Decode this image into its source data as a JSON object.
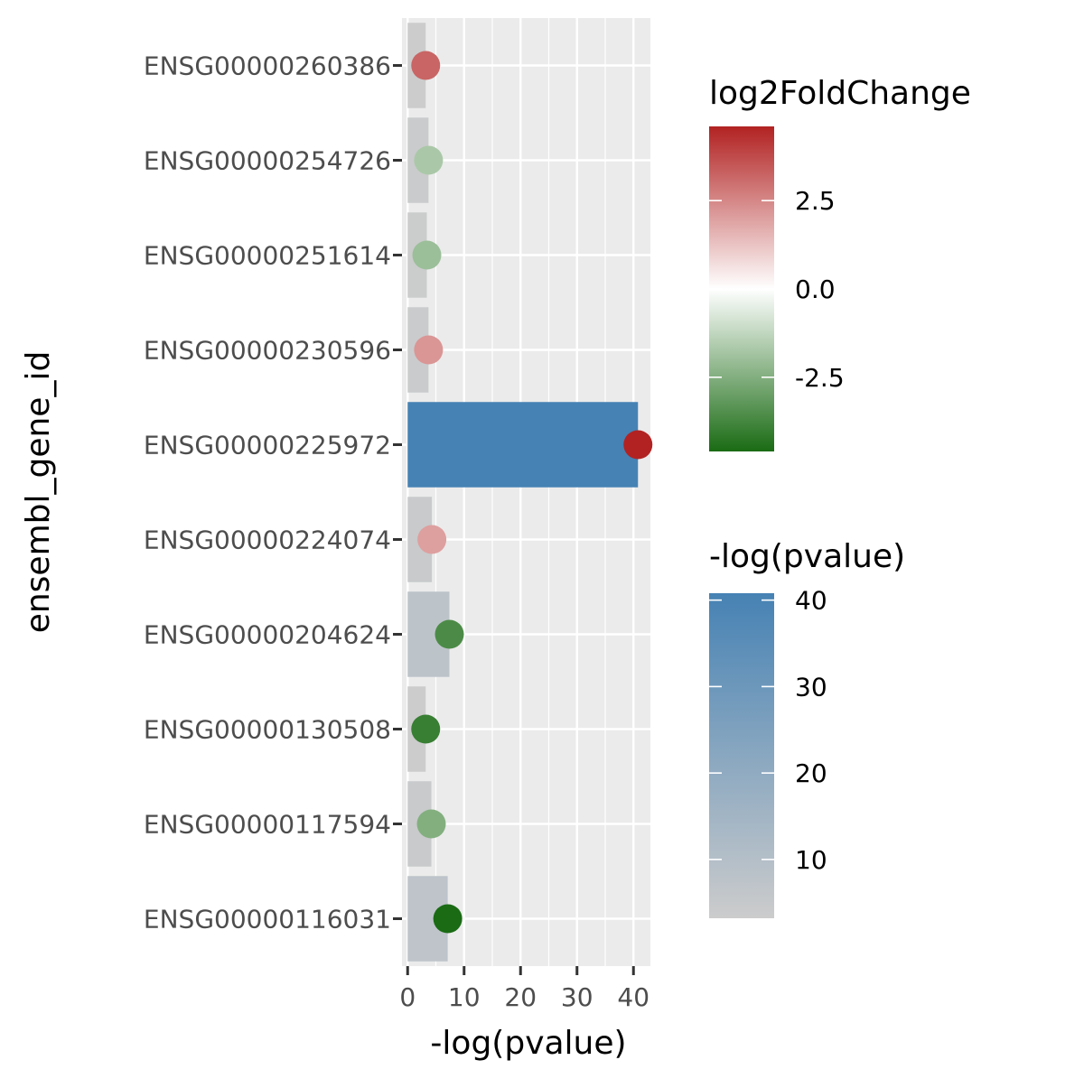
{
  "chart_data": {
    "type": "bar",
    "xlabel": "-log(pvalue)",
    "ylabel": "ensembl_gene_id",
    "xlim": [
      -1,
      43
    ],
    "x_ticks": [
      0,
      10,
      20,
      30,
      40
    ],
    "grid": true,
    "categories": [
      "ENSG00000260386",
      "ENSG00000254726",
      "ENSG00000251614",
      "ENSG00000230596",
      "ENSG00000225972",
      "ENSG00000224074",
      "ENSG00000204624",
      "ENSG00000130508",
      "ENSG00000117594",
      "ENSG00000116031"
    ],
    "neg_log_pvalue": [
      3.2,
      3.7,
      3.4,
      3.7,
      40.8,
      4.3,
      7.4,
      3.2,
      4.2,
      7.1
    ],
    "log2FoldChange": [
      3.2,
      -1.7,
      -2.0,
      2.2,
      4.6,
      2.0,
      -3.6,
      -4.0,
      -2.5,
      -4.6
    ],
    "legends": [
      {
        "title": "log2FoldChange",
        "type": "colorbar",
        "range": [
          -4.6,
          4.6
        ],
        "breaks": [
          2.5,
          0.0,
          -2.5
        ],
        "break_labels": [
          "2.5",
          "0.0",
          "-2.5"
        ],
        "colors": {
          "low": "#1a6b14",
          "mid": "#ffffff",
          "high": "#b22222"
        }
      },
      {
        "title": "-log(pvalue)",
        "type": "colorbar",
        "range": [
          3.2,
          40.8
        ],
        "breaks": [
          40,
          30,
          20,
          10
        ],
        "break_labels": [
          "40",
          "30",
          "20",
          "10"
        ],
        "colors": {
          "low": "#cccccc",
          "high": "#4682b4"
        }
      }
    ]
  }
}
